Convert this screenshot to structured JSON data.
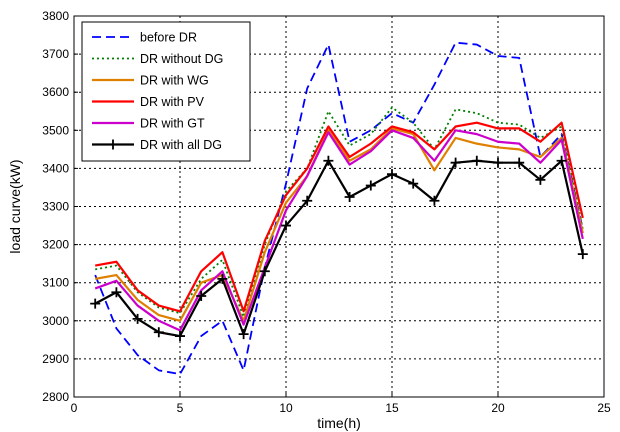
{
  "chart_data": {
    "type": "line",
    "title": "",
    "xlabel": "time(h)",
    "ylabel": "load curve(kW)",
    "xlim": [
      0,
      25
    ],
    "ylim": [
      2800,
      3800
    ],
    "xticks": [
      0,
      5,
      10,
      15,
      20,
      25
    ],
    "yticks": [
      2800,
      2900,
      3000,
      3100,
      3200,
      3300,
      3400,
      3500,
      3600,
      3700,
      3800
    ],
    "grid": true,
    "legend_position": "top-left",
    "x": [
      1,
      2,
      3,
      4,
      5,
      6,
      7,
      8,
      9,
      10,
      11,
      12,
      13,
      14,
      15,
      16,
      17,
      18,
      19,
      20,
      21,
      22,
      23,
      24
    ],
    "series": [
      {
        "name": "before DR",
        "color": "#0000ff",
        "style": "dashed",
        "marker": "none",
        "values": [
          3120,
          2980,
          2910,
          2870,
          2860,
          2960,
          3000,
          2870,
          3140,
          3360,
          3610,
          3725,
          3470,
          3500,
          3545,
          3520,
          3620,
          3730,
          3725,
          3695,
          3690,
          3430,
          3490,
          3240
        ]
      },
      {
        "name": "DR without DG",
        "color": "#008000",
        "style": "dotted",
        "marker": "none",
        "values": [
          3135,
          3145,
          3075,
          3035,
          3020,
          3110,
          3160,
          3010,
          3200,
          3340,
          3400,
          3550,
          3460,
          3490,
          3560,
          3520,
          3450,
          3555,
          3545,
          3520,
          3515,
          3480,
          3510,
          3240
        ]
      },
      {
        "name": "DR with WG",
        "color": "#e08000",
        "style": "solid",
        "marker": "none",
        "values": [
          3110,
          3120,
          3055,
          3015,
          3000,
          3100,
          3120,
          3000,
          3180,
          3310,
          3380,
          3500,
          3420,
          3450,
          3505,
          3490,
          3395,
          3480,
          3465,
          3455,
          3450,
          3430,
          3480,
          3230
        ]
      },
      {
        "name": "DR with PV",
        "color": "#ff0000",
        "style": "solid",
        "marker": "none",
        "values": [
          3145,
          3155,
          3080,
          3040,
          3025,
          3130,
          3180,
          3025,
          3210,
          3330,
          3400,
          3510,
          3430,
          3465,
          3510,
          3495,
          3450,
          3510,
          3520,
          3505,
          3505,
          3470,
          3520,
          3270
        ]
      },
      {
        "name": "DR with GT",
        "color": "#cc00cc",
        "style": "solid",
        "marker": "none",
        "values": [
          3085,
          3105,
          3040,
          3000,
          2975,
          3080,
          3130,
          2990,
          3140,
          3290,
          3380,
          3495,
          3410,
          3445,
          3500,
          3480,
          3420,
          3500,
          3490,
          3470,
          3465,
          3415,
          3475,
          3215
        ]
      },
      {
        "name": "DR with all DG",
        "color": "#000000",
        "style": "solid",
        "marker": "plus",
        "values": [
          3045,
          3075,
          3005,
          2970,
          2960,
          3065,
          3110,
          2965,
          3130,
          3250,
          3315,
          3420,
          3325,
          3355,
          3385,
          3360,
          3315,
          3415,
          3420,
          3415,
          3415,
          3370,
          3420,
          3175
        ]
      }
    ]
  }
}
